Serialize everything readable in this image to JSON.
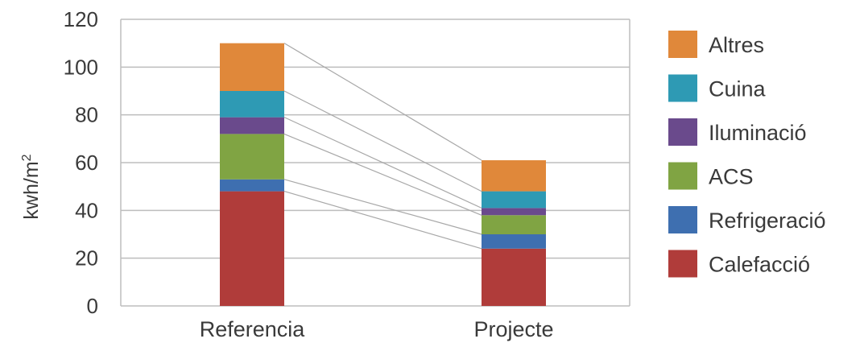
{
  "chart_data": {
    "type": "bar",
    "stacked": true,
    "categories": [
      "Referencia",
      "Projecte"
    ],
    "ylabel": "kwh/m",
    "ylabel_superscript": "2",
    "ylim": [
      0,
      120
    ],
    "yticks": [
      0,
      20,
      40,
      60,
      80,
      100,
      120
    ],
    "grid": true,
    "legend_position": "right",
    "series": [
      {
        "name": "Calefacció",
        "color": "#b03c3a",
        "values": [
          48,
          24
        ]
      },
      {
        "name": "Refrigeració",
        "color": "#3e6fb0",
        "values": [
          5,
          6
        ]
      },
      {
        "name": "ACS",
        "color": "#80a443",
        "values": [
          19,
          8
        ]
      },
      {
        "name": "Iluminació",
        "color": "#6a4a8c",
        "values": [
          7,
          3
        ]
      },
      {
        "name": "Cuina",
        "color": "#2e9ab4",
        "values": [
          11,
          7
        ]
      },
      {
        "name": "Altres",
        "color": "#e0883a",
        "values": [
          20,
          13
        ]
      }
    ]
  }
}
